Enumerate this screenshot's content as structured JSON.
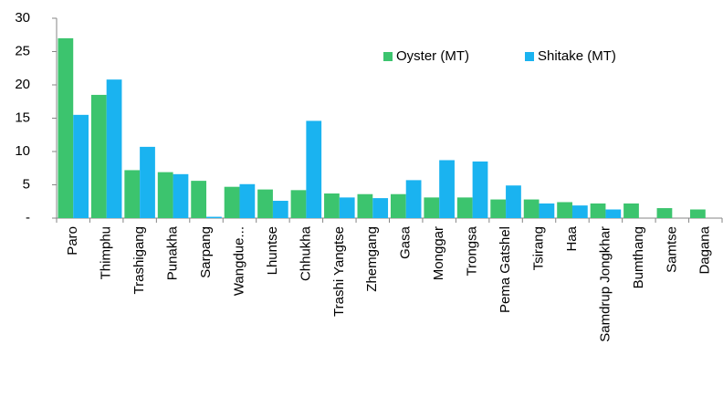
{
  "chart_data": {
    "type": "bar",
    "categories": [
      "Paro",
      "Thimphu",
      "Trashigang",
      "Punakha",
      "Sarpang",
      "Wangdue...",
      "Lhuntse",
      "Chhukha",
      "Trashi Yangtse",
      "Zhemgang",
      "Gasa",
      "Monggar",
      "Trongsa",
      "Pema Gatshel",
      "Tsirang",
      "Haa",
      "Samdrup Jongkhar",
      "Bumthang",
      "Samtse",
      "Dagana"
    ],
    "series": [
      {
        "name": "Oyster (MT)",
        "color": "#3cc46e",
        "values": [
          27,
          18.5,
          7.2,
          6.9,
          5.6,
          4.7,
          4.3,
          4.2,
          3.7,
          3.6,
          3.6,
          3.1,
          3.1,
          2.8,
          2.8,
          2.4,
          2.2,
          2.2,
          1.5,
          1.3
        ]
      },
      {
        "name": "Shitake (MT)",
        "color": "#1ab3f0",
        "values": [
          15.5,
          20.8,
          10.7,
          6.6,
          0.2,
          5.1,
          2.6,
          14.6,
          3.1,
          3.0,
          5.7,
          8.7,
          8.5,
          4.9,
          2.2,
          1.9,
          1.3,
          0,
          0,
          0
        ]
      }
    ],
    "ylim": [
      0,
      30
    ],
    "yticks": [
      {
        "value": 0,
        "label": "-"
      },
      5,
      10,
      15,
      20,
      25,
      30
    ],
    "legend": "top-right"
  }
}
